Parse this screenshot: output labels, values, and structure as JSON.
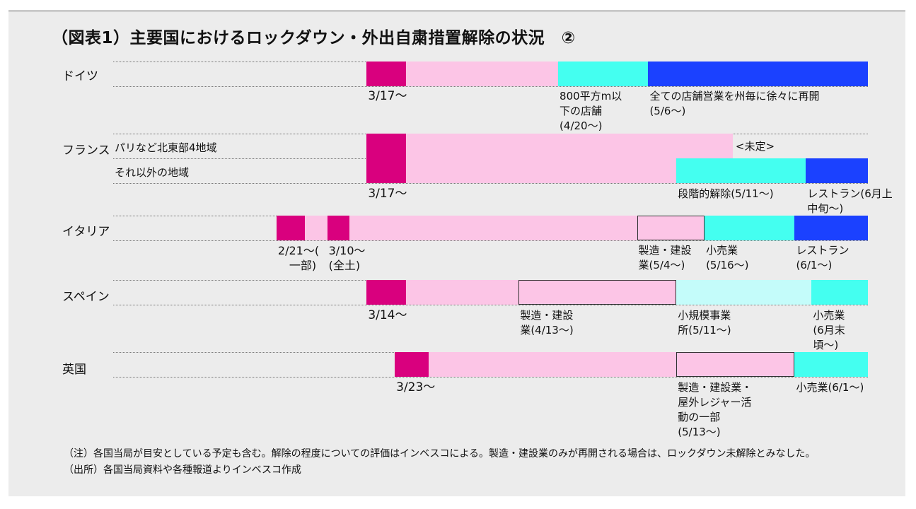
{
  "title": "（図表1）主要国におけるロックダウン・外出自粛措置解除の状況　②",
  "colors": {
    "lockdown_start": "#d9007e",
    "lockdown": "#fcc5e6",
    "partial": "#44fff0",
    "partial_light": "#c4fcfa",
    "full": "#1b41ff",
    "panel": "#ececec"
  },
  "chart_data": {
    "type": "timeline",
    "rows": [
      {
        "country": "ドイツ",
        "sub": "",
        "segments": [
          {
            "start": "3/17",
            "end": "3/24",
            "phase": "lockdown_start",
            "boxed": false
          },
          {
            "start": "3/24",
            "end": "4/20",
            "phase": "lockdown",
            "boxed": false
          },
          {
            "start": "4/20",
            "end": "5/6",
            "phase": "partial",
            "boxed": false
          },
          {
            "start": "5/6",
            "end": "6/14",
            "phase": "full",
            "boxed": false
          }
        ],
        "annotations": [
          {
            "at": "3/17",
            "text": "3/17～",
            "size": 17
          },
          {
            "at": "4/20",
            "text": "800平方m以\n下の店舗\n(4/20～)"
          },
          {
            "at": "5/6",
            "text": "全ての店舗営業を州毎に徐々に再開\n(5/6～)"
          }
        ]
      },
      {
        "country": "フランス",
        "sub": "パリなど北東部4地域",
        "segments": [
          {
            "start": "3/17",
            "end": "3/24",
            "phase": "lockdown_start",
            "boxed": false
          },
          {
            "start": "3/24",
            "end": "5/21",
            "phase": "lockdown",
            "boxed": false
          }
        ],
        "inline_text": {
          "at": "5/21",
          "text": "<未定>"
        },
        "annotations": []
      },
      {
        "country": "",
        "sub": "それ以外の地域",
        "segments": [
          {
            "start": "3/17",
            "end": "3/24",
            "phase": "lockdown_start",
            "boxed": false
          },
          {
            "start": "3/24",
            "end": "5/11",
            "phase": "lockdown",
            "boxed": false
          },
          {
            "start": "5/11",
            "end": "6/3",
            "phase": "partial",
            "boxed": false
          },
          {
            "start": "6/3",
            "end": "6/14",
            "phase": "full",
            "boxed": false
          }
        ],
        "annotations": [
          {
            "at": "3/17",
            "text": "3/17～",
            "size": 17
          },
          {
            "at": "5/11",
            "text": "段階的解除(5/11～)"
          },
          {
            "at": "6/3",
            "text": "レストラン(6月上\n中旬～)"
          }
        ]
      },
      {
        "country": "イタリア",
        "sub": "",
        "segments": [
          {
            "start": "3/1",
            "end": "3/6",
            "phase": "lockdown_start",
            "boxed": false
          },
          {
            "start": "3/6",
            "end": "3/10",
            "phase": "lockdown",
            "boxed": false
          },
          {
            "start": "3/10",
            "end": "3/14",
            "phase": "lockdown_start",
            "boxed": false
          },
          {
            "start": "3/14",
            "end": "5/4",
            "phase": "lockdown",
            "boxed": false
          },
          {
            "start": "5/4",
            "end": "5/16",
            "phase": "lockdown",
            "boxed": true
          },
          {
            "start": "5/16",
            "end": "6/1",
            "phase": "partial",
            "boxed": false
          },
          {
            "start": "6/1",
            "end": "6/14",
            "phase": "full",
            "boxed": false
          }
        ],
        "annotations": [
          {
            "at": "3/1",
            "text": "2/21～(\n　一部)",
            "size": 16
          },
          {
            "at": "3/10",
            "text": "3/10～\n(全土)",
            "size": 16
          },
          {
            "at": "5/4",
            "text": "製造・建設\n業(5/4～)"
          },
          {
            "at": "5/16",
            "text": "小売業\n(5/16～)"
          },
          {
            "at": "6/1",
            "text": "レストラン\n(6/1～)"
          }
        ]
      },
      {
        "country": "スペイン",
        "sub": "",
        "segments": [
          {
            "start": "3/17",
            "end": "3/24",
            "phase": "lockdown_start",
            "boxed": false
          },
          {
            "start": "3/24",
            "end": "4/13",
            "phase": "lockdown",
            "boxed": false
          },
          {
            "start": "4/13",
            "end": "5/11",
            "phase": "lockdown",
            "boxed": true
          },
          {
            "start": "5/11",
            "end": "6/4",
            "phase": "partial_light",
            "boxed": false
          },
          {
            "start": "6/4",
            "end": "6/14",
            "phase": "partial",
            "boxed": false
          }
        ],
        "annotations": [
          {
            "at": "3/17",
            "text": "3/14～",
            "size": 17
          },
          {
            "at": "4/13",
            "text": "製造・建設\n業(4/13～)"
          },
          {
            "at": "5/11",
            "text": "小規模事業\n所(5/11～)"
          },
          {
            "at": "6/4",
            "text": "小売業\n(6月末\n頃～)"
          }
        ]
      },
      {
        "country": "英国",
        "sub": "",
        "segments": [
          {
            "start": "3/22",
            "end": "3/28",
            "phase": "lockdown_start",
            "boxed": false
          },
          {
            "start": "3/28",
            "end": "5/11",
            "phase": "lockdown",
            "boxed": false
          },
          {
            "start": "5/11",
            "end": "6/1",
            "phase": "lockdown",
            "boxed": true
          },
          {
            "start": "6/1",
            "end": "6/14",
            "phase": "partial",
            "boxed": false
          }
        ],
        "annotations": [
          {
            "at": "3/22",
            "text": "3/23～",
            "size": 17
          },
          {
            "at": "5/11",
            "text": "製造・建設業・\n屋外レジャー活\n動の一部\n(5/13～)"
          },
          {
            "at": "6/1",
            "text": "小売業(6/1～)"
          }
        ]
      }
    ]
  },
  "notes": [
    "（注）各国当局が目安としている予定も含む。解除の程度についての評価はインベスコによる。製造・建設業のみが再開される場合は、ロックダウン未解除とみなした。",
    "（出所）各国当局資料や各種報道よりインベスコ作成"
  ]
}
